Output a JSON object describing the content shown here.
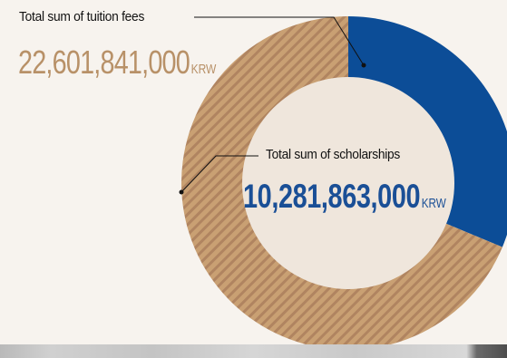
{
  "chart_data": {
    "type": "pie",
    "style": "donut",
    "slices": [
      {
        "label": "Total sum of scholarships",
        "value": 10281863000,
        "unit": "KRW",
        "color": "#0c4d97"
      },
      {
        "label": "Total sum of tuition fees",
        "value": 22601841000,
        "unit": "KRW",
        "color": "#c9a073"
      }
    ]
  },
  "labels": {
    "tuition_label": "Total sum of tuition fees",
    "tuition_amount": "22,601,841,000",
    "tuition_unit": "KRW",
    "scholarship_label": "Total sum of scholarships",
    "scholarship_amount": "10,281,863,000",
    "scholarship_unit": "KRW"
  },
  "colors": {
    "background": "#f7f3ee",
    "center": "#efe6dc",
    "scholarship": "#0c4d97",
    "tuition": "#c9a073",
    "tuition_stripe": "#b08460",
    "tuition_text": "#b89168",
    "scholarship_text": "#1a4f96"
  }
}
